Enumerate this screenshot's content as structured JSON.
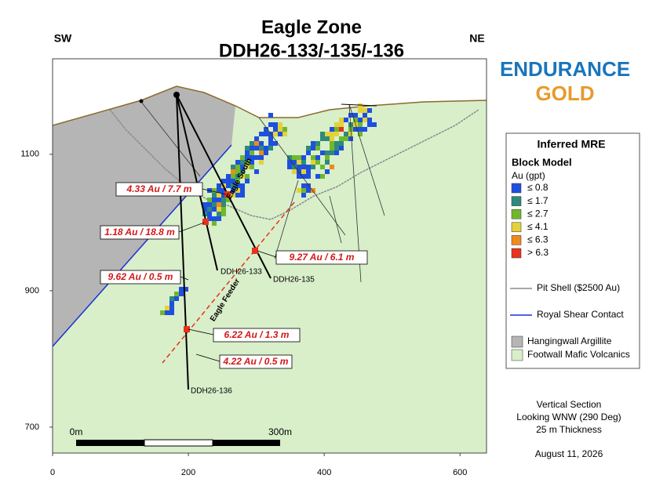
{
  "header": {
    "title": "Eagle Zone",
    "subtitle": "DDH26-133/-135/-136",
    "left_direction": "SW",
    "right_direction": "NE"
  },
  "logo": {
    "line1": "ENDURANCE",
    "line2": "GOLD"
  },
  "axes": {
    "xlim": [
      0,
      639
    ],
    "ylim": [
      662,
      1240
    ],
    "xticks": [
      0,
      200,
      400,
      600
    ],
    "yticks": [
      700,
      900,
      1100
    ]
  },
  "legend": {
    "title": "Inferred MRE",
    "subtitle": "Block Model",
    "unit": "Au (gpt)",
    "grades": [
      {
        "label": "≤ 0.8",
        "color": "#1f4fe0"
      },
      {
        "label": "≤ 1.7",
        "color": "#2e8a7a"
      },
      {
        "label": "≤ 2.7",
        "color": "#6fb82e"
      },
      {
        "label": "≤ 4.1",
        "color": "#e3d23a"
      },
      {
        "label": "≤ 6.3",
        "color": "#f08a1c"
      },
      {
        "label": "> 6.3",
        "color": "#e8321c"
      }
    ],
    "lines": [
      {
        "label": "Pit Shell ($2500 Au)",
        "color": "#8a8a8a"
      },
      {
        "label": "Royal Shear Contact",
        "color": "#1a2fd6"
      }
    ],
    "units": [
      {
        "label": "Hangingwall Argillite",
        "color": "#b5b5b5"
      },
      {
        "label": "Footwall Mafic Volcanics",
        "color": "#d8efca"
      }
    ]
  },
  "drill_holes": [
    "DDH26-133",
    "DDH26-135",
    "DDH26-136"
  ],
  "intercepts": [
    "4.33 Au / 7.7 m",
    "1.18 Au / 18.8 m",
    "9.27 Au / 6.1 m",
    "9.62 Au / 0.5 m",
    "6.22 Au / 1.3 m",
    "4.22 Au / 0.5 m"
  ],
  "zones": [
    "Eagle South",
    "Eagle Feeder"
  ],
  "scale_bar": {
    "start": "0m",
    "end": "300m"
  },
  "notes": [
    "Vertical Section",
    "Looking WNW (290 Deg)",
    "25 m Thickness",
    "August 11, 2026"
  ]
}
